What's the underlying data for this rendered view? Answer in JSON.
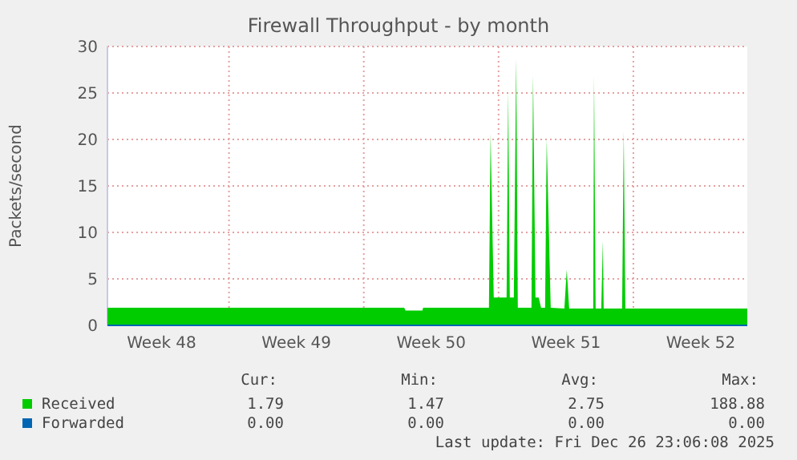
{
  "chart_data": {
    "type": "area",
    "title": "Firewall Throughput - by month",
    "ylabel": "Packets/second",
    "x": [
      "2025-11-24T16:30",
      "2025-12-10T02:24",
      "2025-12-10T04:00",
      "2025-12-11T01:00",
      "2025-12-11T02:00",
      "2025-12-14T12:00",
      "2025-12-14T14:00",
      "2025-12-14T18:00",
      "2025-12-15T10:00",
      "2025-12-15T12:00",
      "2025-12-15T14:00",
      "2025-12-15T19:00",
      "2025-12-15T22:00",
      "2025-12-16T00:00",
      "2025-12-16T17:00",
      "2025-12-16T19:00",
      "2025-12-16T22:00",
      "2025-12-17T02:00",
      "2025-12-17T05:00",
      "2025-12-17T10:00",
      "2025-12-17T12:00",
      "2025-12-17T17:00",
      "2025-12-18T10:00",
      "2025-12-18T13:00",
      "2025-12-18T16:00",
      "2025-12-19T22:00",
      "2025-12-19T23:00",
      "2025-12-20T01:00",
      "2025-12-20T08:00",
      "2025-12-20T10:00",
      "2025-12-20T11:00",
      "2025-12-21T10:00",
      "2025-12-21T12:00",
      "2025-12-21T14:00",
      "2025-12-27T22:00"
    ],
    "series": [
      {
        "name": "Received",
        "color": "#00cc00",
        "values": [
          1.9,
          1.9,
          1.6,
          1.6,
          1.9,
          1.9,
          20.6,
          3.0,
          3.0,
          25.2,
          3.0,
          3.0,
          28.7,
          1.9,
          1.9,
          26.9,
          3.0,
          3.0,
          1.9,
          1.9,
          20.0,
          1.9,
          1.8,
          6.0,
          1.8,
          1.8,
          26.9,
          1.8,
          1.8,
          9.1,
          1.8,
          1.8,
          20.9,
          1.8,
          1.8
        ]
      },
      {
        "name": "Forwarded",
        "color": "#0066b3",
        "type": "line",
        "values": [
          0,
          0,
          0,
          0,
          0,
          0,
          0,
          0,
          0,
          0,
          0,
          0,
          0,
          0,
          0,
          0,
          0,
          0,
          0,
          0,
          0,
          0,
          0,
          0,
          0,
          0,
          0,
          0,
          0,
          0,
          0,
          0,
          0,
          0,
          0
        ]
      }
    ],
    "xlim": [
      "2025-11-24T16:30",
      "2025-12-27T22:00"
    ],
    "xticks": [
      {
        "value": "2025-11-27T12:00",
        "label": "Week 48"
      },
      {
        "value": "2025-12-01T00:00",
        "label": null
      },
      {
        "value": "2025-12-04T12:00",
        "label": "Week 49"
      },
      {
        "value": "2025-12-08T00:00",
        "label": null
      },
      {
        "value": "2025-12-11T12:00",
        "label": "Week 50"
      },
      {
        "value": "2025-12-15T00:00",
        "label": null
      },
      {
        "value": "2025-12-18T12:00",
        "label": "Week 51"
      },
      {
        "value": "2025-12-22T00:00",
        "label": null
      },
      {
        "value": "2025-12-25T12:00",
        "label": "Week 52"
      }
    ],
    "ylim": [
      0,
      30
    ],
    "yticks": [
      0,
      5,
      10,
      15,
      20,
      25,
      30
    ],
    "grid": true,
    "legend": "bottom",
    "annotations": [
      "Cur:",
      "Min:",
      "Avg:",
      "Max:",
      "1.79",
      "1.47",
      "2.75",
      "188.88",
      "0.00",
      "0.00",
      "0.00",
      "0.00",
      "Last update: Fri Dec 26 23:06:08 2025"
    ]
  }
}
